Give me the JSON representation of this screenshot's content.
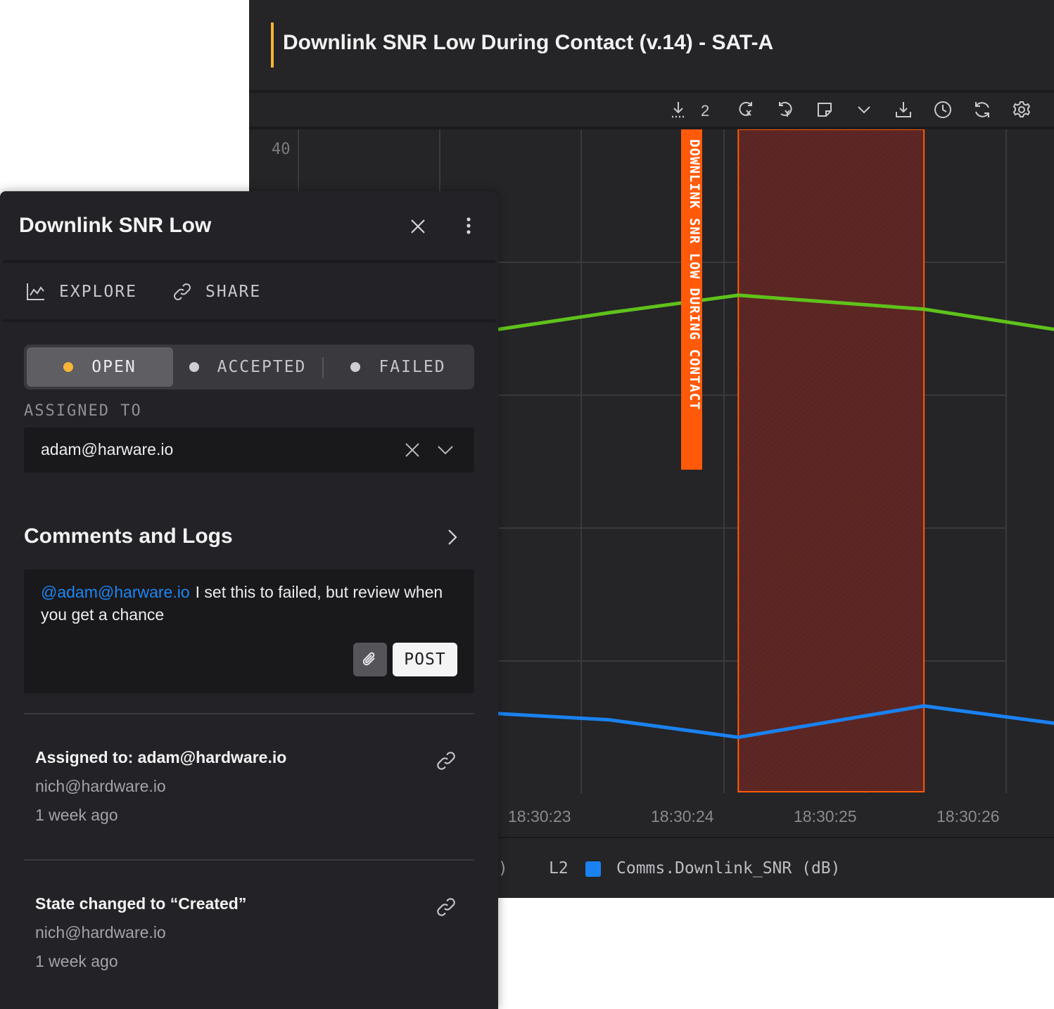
{
  "chart_window": {
    "title": "Downlink SNR Low During Contact (v.14) - SAT-A",
    "toolbar": {
      "download_count": "2",
      "icons": [
        "download-annotations-icon",
        "reset-x-icon",
        "reset-y-icon",
        "note-icon",
        "chevron-down-icon",
        "export-icon",
        "history-icon",
        "refresh-icon",
        "settings-icon"
      ]
    },
    "annotation_label": "DOWNLINK SNR LOW DURING CONTACT",
    "legend": {
      "clipped_fragment": "W)",
      "series_id": "L2",
      "series_name": "Comms.Downlink_SNR (dB)",
      "series_color": "#1a82f0"
    }
  },
  "chart_data": {
    "type": "line",
    "y_tick_labels": [
      "40"
    ],
    "x_tick_labels": [
      "18:30:23",
      "18:30:24",
      "18:30:25",
      "18:30:26"
    ],
    "x": [
      "18:30:21.9",
      "18:30:23.2",
      "18:30:24.1",
      "18:30:25.4",
      "18:30:26.5"
    ],
    "annotation": {
      "label": "DOWNLINK SNR LOW DURING CONTACT",
      "x_start": "18:30:24.1",
      "x_end": "18:30:25.4",
      "color": "#ff5a0a"
    },
    "series": [
      {
        "color": "#5fc21a",
        "values": [
          34.5,
          35.3,
          35.8,
          35.4,
          34.7
        ]
      },
      {
        "name": "Comms.Downlink_SNR (dB)",
        "color": "#1a82f0",
        "values": [
          23.9,
          23.6,
          23.1,
          24.0,
          23.4
        ]
      }
    ]
  },
  "panel": {
    "title": "Downlink SNR Low",
    "actions": {
      "explore": "EXPLORE",
      "share": "SHARE"
    },
    "states": [
      {
        "label": "OPEN",
        "dot_color": "#f5b536",
        "active": true
      },
      {
        "label": "ACCEPTED",
        "dot_color": "#cfcfd2",
        "active": false
      },
      {
        "label": "FAILED",
        "dot_color": "#cfcfd2",
        "active": false
      }
    ],
    "assigned_label": "ASSIGNED TO",
    "assigned_value": "adam@harware.io",
    "comments_title": "Comments and Logs",
    "comment": {
      "mention": "@adam@harware.io",
      "text": "I set this to failed, but review when you get a chance",
      "post_label": "POST"
    },
    "logs": [
      {
        "title": "Assigned to: adam@hardware.io",
        "author": "nich@hardware.io",
        "when": "1 week ago"
      },
      {
        "title": "State changed to “Created”",
        "author": "nich@hardware.io",
        "when": "1 week ago"
      }
    ]
  }
}
